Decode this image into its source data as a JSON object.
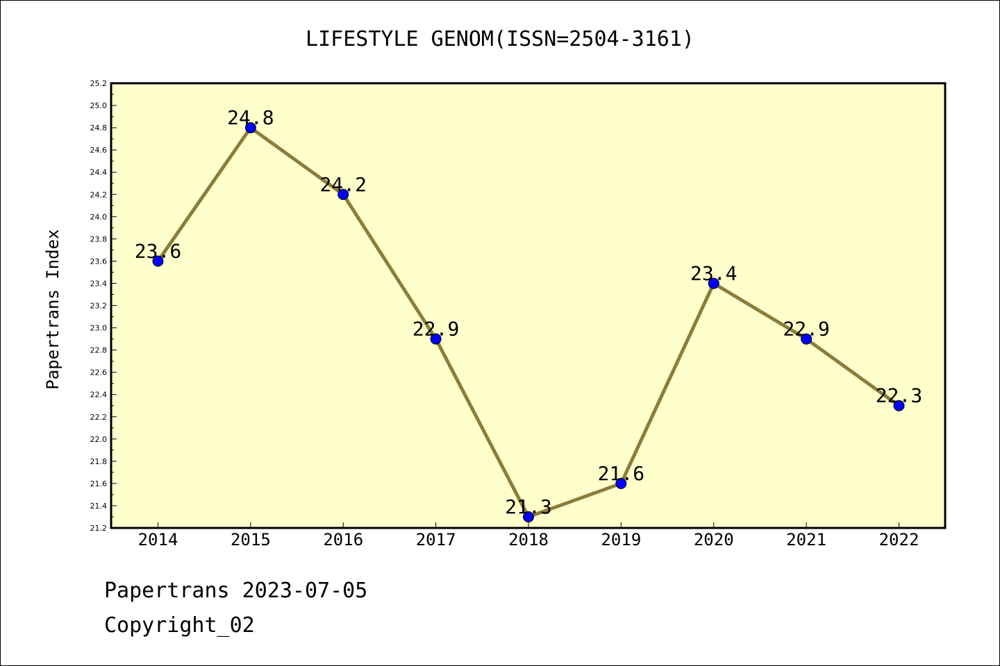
{
  "chart_data": {
    "type": "line",
    "title": "LIFESTYLE GENOM(ISSN=2504-3161)",
    "xlabel": "",
    "ylabel": "Papertrans Index",
    "categories": [
      "2014",
      "2015",
      "2016",
      "2017",
      "2018",
      "2019",
      "2020",
      "2021",
      "2022"
    ],
    "series": [
      {
        "values": [
          23.6,
          24.8,
          24.2,
          22.9,
          21.3,
          21.6,
          23.4,
          22.9,
          22.3
        ],
        "data_labels": [
          "23.6",
          "24.8",
          "24.2",
          "22.9",
          "21.3",
          "21.6",
          "23.4",
          "22.9",
          "22.3"
        ]
      }
    ],
    "y_ticks": [
      "21.2",
      "21.4",
      "21.6",
      "21.8",
      "22.0",
      "22.2",
      "22.4",
      "22.6",
      "22.8",
      "23.0",
      "23.2",
      "23.4",
      "23.6",
      "23.8",
      "24.0",
      "24.2",
      "24.4",
      "24.6",
      "24.8",
      "25.0",
      "25.2"
    ],
    "ylim": [
      21.2,
      25.2
    ],
    "grid": false,
    "legend": "none",
    "colors": {
      "plot_background": "#ffffcc",
      "line": "#8b7d3a",
      "marker": "#0000ff"
    }
  },
  "footer": {
    "line1": "Papertrans 2023-07-05",
    "line2": "Copyright_02"
  }
}
